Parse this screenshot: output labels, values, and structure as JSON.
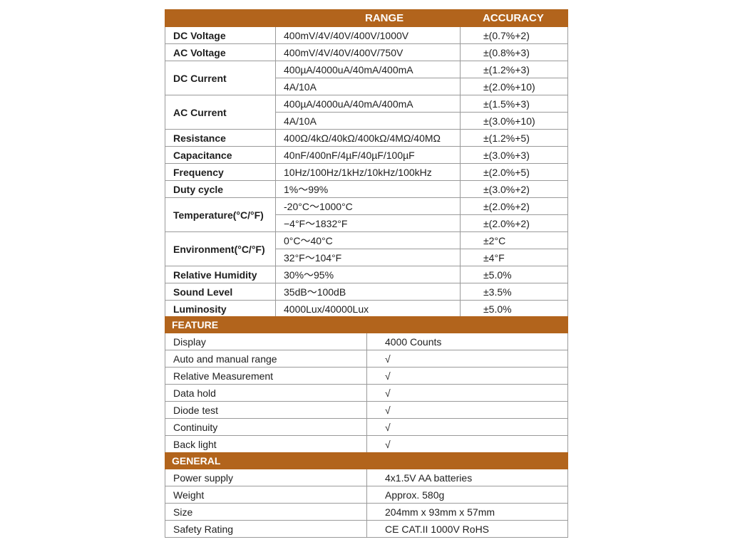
{
  "spec": {
    "headers": {
      "range": "RANGE",
      "accuracy": "ACCURACY"
    },
    "rows": [
      {
        "label": "DC Voltage",
        "entries": [
          {
            "range": "400mV/4V/40V/400V/1000V",
            "accuracy": "±(0.7%+2)"
          }
        ]
      },
      {
        "label": "AC Voltage",
        "entries": [
          {
            "range": "400mV/4V/40V/400V/750V",
            "accuracy": "±(0.8%+3)"
          }
        ]
      },
      {
        "label": "DC Current",
        "entries": [
          {
            "range": "400µA/4000uA/40mA/400mA",
            "accuracy": "±(1.2%+3)"
          },
          {
            "range": "4A/10A",
            "accuracy": "±(2.0%+10)"
          }
        ]
      },
      {
        "label": "AC Current",
        "entries": [
          {
            "range": "400µA/4000uA/40mA/400mA",
            "accuracy": "±(1.5%+3)"
          },
          {
            "range": "4A/10A",
            "accuracy": "±(3.0%+10)"
          }
        ]
      },
      {
        "label": "Resistance",
        "entries": [
          {
            "range": "400Ω/4kΩ/40kΩ/400kΩ/4MΩ/40MΩ",
            "accuracy": "±(1.2%+5)"
          }
        ]
      },
      {
        "label": "Capacitance",
        "entries": [
          {
            "range": "40nF/400nF/4µF/40µF/100µF",
            "accuracy": "±(3.0%+3)"
          }
        ]
      },
      {
        "label": "Frequency",
        "entries": [
          {
            "range": "10Hz/100Hz/1kHz/10kHz/100kHz",
            "accuracy": "±(2.0%+5)"
          }
        ]
      },
      {
        "label": "Duty cycle",
        "entries": [
          {
            "range": "1%～99%",
            "accuracy": "±(3.0%+2)"
          }
        ]
      },
      {
        "label": "Temperature(°C/°F)",
        "entries": [
          {
            "range": "-20°C～1000°C",
            "accuracy": "±(2.0%+2)"
          },
          {
            "range": "−4°F～1832°F",
            "accuracy": "±(2.0%+2)"
          }
        ]
      },
      {
        "label": "Environment(°C/°F)",
        "entries": [
          {
            "range": "0°C～40°C",
            "accuracy": "±2°C"
          },
          {
            "range": "32°F～104°F",
            "accuracy": "±4°F"
          }
        ]
      },
      {
        "label": "Relative Humidity",
        "entries": [
          {
            "range": "30%～95%",
            "accuracy": "±5.0%"
          }
        ]
      },
      {
        "label": "Sound Level",
        "entries": [
          {
            "range": "35dB～100dB",
            "accuracy": "±3.5%"
          }
        ]
      },
      {
        "label": "Luminosity",
        "entries": [
          {
            "range": "4000Lux/40000Lux",
            "accuracy": "±5.0%"
          }
        ]
      }
    ]
  },
  "feature": {
    "title": "FEATURE",
    "rows": [
      {
        "label": "Display",
        "value": "4000 Counts"
      },
      {
        "label": "Auto and manual range",
        "value": "√"
      },
      {
        "label": "Relative Measurement",
        "value": "√"
      },
      {
        "label": "Data hold",
        "value": "√"
      },
      {
        "label": "Diode test",
        "value": "√"
      },
      {
        "label": "Continuity",
        "value": "√"
      },
      {
        "label": "Back light",
        "value": "√"
      }
    ]
  },
  "general": {
    "title": "GENERAL",
    "rows": [
      {
        "label": "Power supply",
        "value": "4x1.5V AA batteries"
      },
      {
        "label": "Weight",
        "value": "Approx. 580g"
      },
      {
        "label": "Size",
        "value": "204mm x 93mm x 57mm"
      },
      {
        "label": "Safety Rating",
        "value": "CE CAT.II 1000V RoHS"
      }
    ]
  },
  "colors": {
    "header_bg": "#b2641c",
    "border": "#9a9a9a"
  }
}
